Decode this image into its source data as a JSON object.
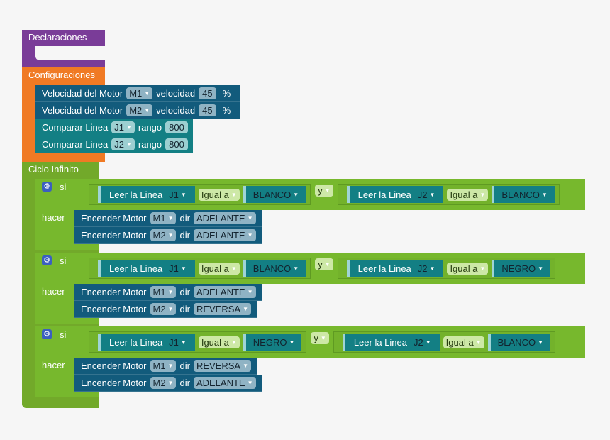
{
  "declaraciones": {
    "label": "Declaraciones"
  },
  "configuraciones": {
    "label": "Configuraciones",
    "motores": [
      {
        "label": "Velocidad del Motor",
        "motor": "M1",
        "vel_label": "velocidad",
        "value": "45",
        "unit": "%"
      },
      {
        "label": "Velocidad del Motor",
        "motor": "M2",
        "vel_label": "velocidad",
        "value": "45",
        "unit": "%"
      }
    ],
    "lineas": [
      {
        "label": "Comparar Linea",
        "sensor": "J1",
        "rango_label": "rango",
        "value": "800"
      },
      {
        "label": "Comparar Linea",
        "sensor": "J2",
        "rango_label": "rango",
        "value": "800"
      }
    ]
  },
  "ciclo": {
    "label": "Ciclo Infinito",
    "ifs": [
      {
        "si": "si",
        "hacer": "hacer",
        "join": "y",
        "left": {
          "label": "Leer la Linea",
          "sensor": "J1",
          "op": "Igual a",
          "value": "BLANCO"
        },
        "right": {
          "label": "Leer la Linea",
          "sensor": "J2",
          "op": "Igual a",
          "value": "BLANCO"
        },
        "actions": [
          {
            "label": "Encender Motor",
            "motor": "M1",
            "dir_label": "dir",
            "dir": "ADELANTE"
          },
          {
            "label": "Encender Motor",
            "motor": "M2",
            "dir_label": "dir",
            "dir": "ADELANTE"
          }
        ]
      },
      {
        "si": "si",
        "hacer": "hacer",
        "join": "y",
        "left": {
          "label": "Leer la Linea",
          "sensor": "J1",
          "op": "Igual a",
          "value": "BLANCO"
        },
        "right": {
          "label": "Leer la Linea",
          "sensor": "J2",
          "op": "Igual a",
          "value": "NEGRO"
        },
        "actions": [
          {
            "label": "Encender Motor",
            "motor": "M1",
            "dir_label": "dir",
            "dir": "ADELANTE"
          },
          {
            "label": "Encender Motor",
            "motor": "M2",
            "dir_label": "dir",
            "dir": "REVERSA"
          }
        ]
      },
      {
        "si": "si",
        "hacer": "hacer",
        "join": "y",
        "left": {
          "label": "Leer la Linea",
          "sensor": "J1",
          "op": "Igual a",
          "value": "NEGRO"
        },
        "right": {
          "label": "Leer la Linea",
          "sensor": "J2",
          "op": "Igual a",
          "value": "BLANCO"
        },
        "actions": [
          {
            "label": "Encender Motor",
            "motor": "M1",
            "dir_label": "dir",
            "dir": "REVERSA"
          },
          {
            "label": "Encender Motor",
            "motor": "M2",
            "dir_label": "dir",
            "dir": "ADELANTE"
          }
        ]
      }
    ]
  },
  "icons": {
    "dropdown": "triangle-down",
    "gear": "gear-icon"
  }
}
